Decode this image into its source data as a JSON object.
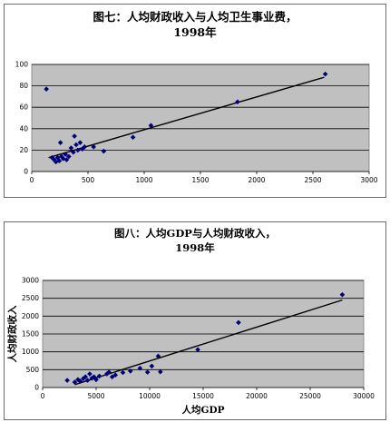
{
  "charts": [
    {
      "title_line1": "图七：人均财政收入与人均卫生事业费，",
      "title_line2": "1998年"
    },
    {
      "title_line1": "图八：人均GDP与人均财政收入，",
      "title_line2": "1998年"
    }
  ],
  "colors": {
    "plot_background": "#c0c0c0",
    "marker": "#00007a",
    "trendline": "#000000",
    "gridline": "#000000"
  },
  "chart_data": [
    {
      "type": "scatter",
      "title": "图七：人均财政收入与人均卫生事业费，1998年",
      "xlabel": "",
      "ylabel": "",
      "xlim": [
        0,
        3000
      ],
      "ylim": [
        0,
        100
      ],
      "x_ticks": [
        0,
        500,
        1000,
        1500,
        2000,
        2500,
        3000
      ],
      "y_ticks": [
        0,
        20,
        40,
        60,
        80,
        100
      ],
      "grid": "horizontal",
      "trendline": {
        "type": "linear",
        "from": [
          150,
          13
        ],
        "to": [
          2600,
          88
        ]
      },
      "points": [
        [
          130,
          77
        ],
        [
          180,
          13
        ],
        [
          200,
          11
        ],
        [
          215,
          9
        ],
        [
          230,
          13
        ],
        [
          245,
          10
        ],
        [
          255,
          27
        ],
        [
          265,
          14
        ],
        [
          280,
          12
        ],
        [
          300,
          16
        ],
        [
          310,
          11
        ],
        [
          330,
          14
        ],
        [
          350,
          22
        ],
        [
          370,
          18
        ],
        [
          380,
          33
        ],
        [
          395,
          25
        ],
        [
          410,
          20
        ],
        [
          430,
          27
        ],
        [
          450,
          21
        ],
        [
          470,
          23
        ],
        [
          550,
          23
        ],
        [
          640,
          19
        ],
        [
          900,
          32
        ],
        [
          1060,
          43
        ],
        [
          1830,
          65
        ],
        [
          2610,
          91
        ]
      ]
    },
    {
      "type": "scatter",
      "title": "图八：人均GDP与人均财政收入，1998年",
      "xlabel": "人均GDP",
      "ylabel": "人均财政收入",
      "xlim": [
        0,
        30000
      ],
      "ylim": [
        0,
        3000
      ],
      "x_ticks": [
        0,
        5000,
        10000,
        15000,
        20000,
        25000,
        30000
      ],
      "y_ticks": [
        0,
        500,
        1000,
        1500,
        2000,
        2500,
        3000
      ],
      "grid": "horizontal",
      "trendline": {
        "type": "linear",
        "from": [
          3000,
          80
        ],
        "to": [
          28000,
          2450
        ]
      },
      "points": [
        [
          2300,
          200
        ],
        [
          3000,
          150
        ],
        [
          3300,
          220
        ],
        [
          3500,
          180
        ],
        [
          3800,
          250
        ],
        [
          4000,
          300
        ],
        [
          4200,
          200
        ],
        [
          4400,
          380
        ],
        [
          4600,
          260
        ],
        [
          4800,
          300
        ],
        [
          5000,
          220
        ],
        [
          5300,
          320
        ],
        [
          6000,
          380
        ],
        [
          6200,
          430
        ],
        [
          6500,
          300
        ],
        [
          6800,
          350
        ],
        [
          7500,
          420
        ],
        [
          8200,
          460
        ],
        [
          9100,
          540
        ],
        [
          9800,
          430
        ],
        [
          10200,
          600
        ],
        [
          10800,
          880
        ],
        [
          11000,
          440
        ],
        [
          14500,
          1060
        ],
        [
          18300,
          1820
        ],
        [
          28000,
          2600
        ]
      ]
    }
  ]
}
